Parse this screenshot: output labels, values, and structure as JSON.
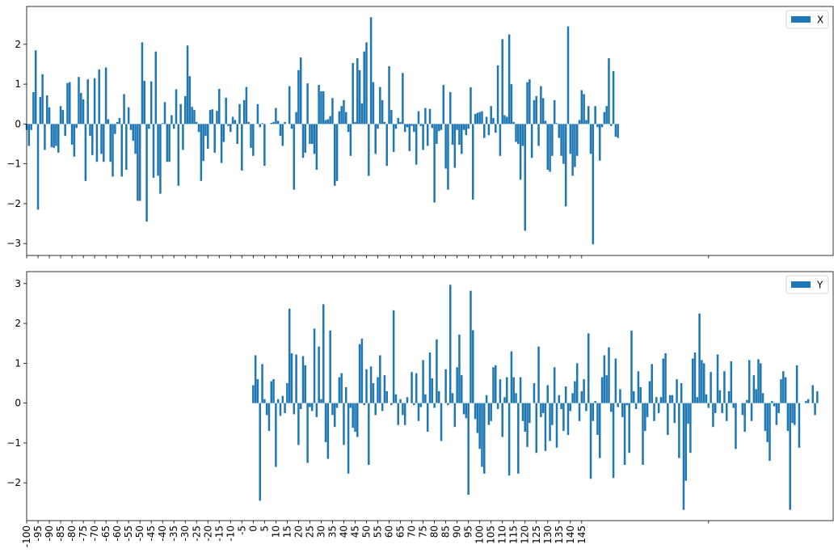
{
  "figure": {
    "tick_labels": [
      "-100",
      "-95",
      "-90",
      "-85",
      "-80",
      "-75",
      "-70",
      "-65",
      "-60",
      "-55",
      "-50",
      "-45",
      "-40",
      "-35",
      "-30",
      "-25",
      "-20",
      "-15",
      "-10",
      "-5",
      "0",
      "5",
      "10",
      "15",
      "20",
      "25",
      "30",
      "35",
      "40",
      "45",
      "50",
      "55",
      "60",
      "65",
      "70",
      "75",
      "80",
      "85",
      "90",
      "95",
      "100",
      "105",
      "110",
      "115",
      "120",
      "125",
      "130",
      "135",
      "140",
      "145"
    ]
  },
  "chart_data": [
    {
      "type": "bar",
      "legend": "X",
      "legend_position": "top-right",
      "color": "#1f77b4",
      "grid": false,
      "ylim": [
        -3.3,
        2.95
      ],
      "y_ticks": [
        "-3",
        "-2",
        "-1",
        "0",
        "1",
        "2"
      ],
      "x_start": -100,
      "values": [
        -0.15,
        -0.55,
        -0.15,
        0.8,
        1.85,
        -2.15,
        0.68,
        1.25,
        -0.65,
        0.72,
        0.42,
        -0.58,
        -0.6,
        -0.55,
        -0.72,
        0.45,
        0.35,
        -0.3,
        1.03,
        1.05,
        -0.52,
        -0.82,
        -0.1,
        1.18,
        0.78,
        0.62,
        -1.43,
        1.12,
        -0.3,
        -0.78,
        1.15,
        -0.95,
        1.37,
        -0.75,
        -0.95,
        1.42,
        0.12,
        -0.95,
        -1.32,
        -0.25,
        0.05,
        0.15,
        -1.32,
        0.75,
        -1.15,
        0.42,
        -0.15,
        -0.42,
        -0.75,
        -1.93,
        -1.93,
        2.05,
        1.08,
        -2.45,
        -0.12,
        1.07,
        -1.35,
        1.82,
        -1.3,
        -1.75,
        0.02,
        0.55,
        -0.95,
        -0.95,
        0.22,
        -0.12,
        0.87,
        -1.55,
        0.5,
        -0.65,
        0.7,
        1.97,
        1.2,
        0.43,
        0.35,
        0.05,
        -0.2,
        -1.43,
        -0.93,
        -0.3,
        -0.62,
        0.35,
        0.37,
        -0.72,
        0.33,
        0.88,
        -0.98,
        -0.45,
        0.66,
        -0.05,
        -0.2,
        0.18,
        0.1,
        -0.5,
        0.5,
        -1.17,
        0.6,
        0.93,
        0.05,
        -0.6,
        -0.8,
        0.0,
        0.5,
        -0.08,
        0.02,
        -1.05,
        0.0,
        0.0,
        0.03,
        0.05,
        0.4,
        0.08,
        -0.3,
        -0.55,
        0.05,
        0.0,
        0.95,
        -0.12,
        -1.65,
        0.3,
        1.35,
        1.67,
        -0.85,
        -0.72,
        1.02,
        -0.5,
        -0.5,
        -0.75,
        -1.15,
        0.98,
        0.82,
        0.82,
        0.1,
        0.12,
        0.2,
        0.65,
        -1.55,
        -1.43,
        0.32,
        0.45,
        0.6,
        0.3,
        -0.2,
        -0.8,
        1.53,
        0.05,
        1.65,
        1.35,
        0.52,
        1.82,
        2.05,
        -1.3,
        2.68,
        1.05,
        -0.75,
        -0.12,
        0.93,
        0.6,
        0.05,
        -1.05,
        1.45,
        0.35,
        -0.7,
        -0.12,
        0.15,
        0.05,
        1.28,
        -0.2,
        -0.08,
        -0.68,
        -0.05,
        -0.2,
        -1.02,
        0.32,
        -0.05,
        -0.65,
        0.4,
        -0.55,
        0.38,
        -0.1,
        -1.97,
        -0.5,
        -0.18,
        -0.15,
        0.98,
        -1.12,
        -1.65,
        0.8,
        -0.52,
        -1.1,
        -0.15,
        -0.52,
        -0.75,
        -0.15,
        -0.28,
        -0.12,
        0.92,
        -1.9,
        0.25,
        0.28,
        0.3,
        0.32,
        -0.35,
        0.18,
        -0.28,
        0.45,
        0.15,
        -0.22,
        1.47,
        -0.8,
        2.13,
        0.22,
        0.18,
        2.25,
        1.0,
        0.05,
        -0.45,
        -0.5,
        -1.4,
        -0.55,
        -2.68,
        1.05,
        1.12,
        -0.85,
        0.6,
        0.7,
        -0.55,
        0.95,
        0.65,
        0.08,
        -1.15,
        -1.2,
        -0.8,
        0.6,
        0.02,
        -0.35,
        -0.8,
        -1.0,
        -2.07,
        2.45,
        -0.75,
        -1.3,
        -1.08,
        -0.8,
        0.1,
        0.85,
        0.75,
        0.1,
        0.45,
        -0.75,
        -3.02,
        0.45,
        -0.08,
        -0.92,
        -0.08,
        0.3,
        0.45,
        1.65,
        -0.05,
        1.33,
        -0.32,
        -0.35
      ]
    },
    {
      "type": "bar",
      "legend": "Y",
      "legend_position": "top-right",
      "color": "#1f77b4",
      "grid": false,
      "ylim": [
        -2.95,
        3.3
      ],
      "y_ticks": [
        "-2",
        "-1",
        "0",
        "1",
        "2",
        "3"
      ],
      "x_start": 0,
      "values": [
        0.45,
        1.2,
        0.6,
        -2.45,
        0.98,
        0.1,
        -0.3,
        -0.7,
        0.55,
        0.6,
        -1.6,
        0.1,
        -0.32,
        0.18,
        -0.25,
        0.5,
        2.37,
        1.25,
        -0.28,
        1.22,
        -1.05,
        -0.15,
        1.18,
        0.95,
        -1.5,
        -0.1,
        -0.2,
        1.87,
        -0.35,
        1.42,
        0.1,
        2.48,
        -0.98,
        -1.4,
        1.82,
        -0.3,
        -0.6,
        -0.12,
        0.65,
        0.75,
        -1.05,
        0.4,
        -1.77,
        -0.12,
        -0.62,
        -0.72,
        -0.85,
        1.48,
        1.62,
        -0.05,
        0.85,
        -1.55,
        0.92,
        0.5,
        -0.3,
        0.65,
        1.2,
        -0.2,
        0.7,
        0.3,
        0.0,
        -0.05,
        2.33,
        0.22,
        -0.55,
        0.1,
        -0.3,
        -0.55,
        0.15,
        0.0,
        0.78,
        -0.05,
        0.75,
        -0.45,
        -0.1,
        1.08,
        0.22,
        -0.72,
        1.27,
        0.62,
        -0.12,
        1.6,
        0.3,
        -0.95,
        0.0,
        0.85,
        -0.05,
        2.97,
        0.25,
        -0.6,
        0.9,
        1.72,
        0.7,
        -0.28,
        -0.38,
        -2.3,
        2.82,
        1.83,
        -0.4,
        -0.75,
        -1.15,
        -1.6,
        -1.77,
        0.2,
        -0.55,
        -0.45,
        0.9,
        0.95,
        -0.15,
        0.6,
        -0.85,
        0.15,
        0.65,
        -1.82,
        1.3,
        0.65,
        0.25,
        -1.77,
        0.65,
        -0.45,
        -0.72,
        -1.1,
        -0.5,
        0.0,
        0.5,
        -1.25,
        1.42,
        -0.35,
        -0.25,
        -1.2,
        0.45,
        -0.95,
        -0.55,
        0.9,
        -1.12,
        0.2,
        -0.15,
        -0.7,
        0.42,
        -0.8,
        -0.2,
        0.25,
        0.55,
        1.0,
        -0.45,
        0.3,
        0.6,
        -0.2,
        1.75,
        -1.9,
        -0.45,
        0.05,
        -0.8,
        -1.38,
        0.65,
        1.2,
        0.7,
        1.4,
        -0.22,
        -1.88,
        1.12,
        -0.1,
        0.35,
        -0.35,
        -1.55,
        -0.05,
        -1.25,
        1.82,
        0.3,
        -0.15,
        0.8,
        0.4,
        -1.55,
        -0.7,
        -0.35,
        0.55,
        0.98,
        -0.45,
        0.15,
        -0.25,
        0.15,
        1.12,
        1.25,
        -0.8,
        0.2,
        0.2,
        -0.5,
        0.6,
        -1.38,
        0.5,
        -2.68,
        -1.95,
        -0.52,
        -1.25,
        1.12,
        1.27,
        0.15,
        2.25,
        1.08,
        1.0,
        0.22,
        -0.12,
        0.78,
        -0.6,
        -0.25,
        1.22,
        0.32,
        -0.25,
        0.8,
        -0.45,
        0.3,
        1.05,
        -0.12,
        -1.15,
        0.0,
        0.0,
        -0.3,
        -0.72,
        0.08,
        1.08,
        -0.45,
        0.7,
        0.35,
        1.1,
        1.0,
        0.25,
        -0.7,
        -0.98,
        -1.45,
        0.05,
        -0.08,
        -0.55,
        -0.25,
        0.6,
        0.8,
        0.65,
        -0.7,
        -2.68,
        -0.5,
        -0.55,
        0.95,
        -1.12,
        0.0,
        0.0,
        0.05,
        0.1,
        0.0,
        0.45,
        -0.3,
        0.3
      ]
    }
  ]
}
